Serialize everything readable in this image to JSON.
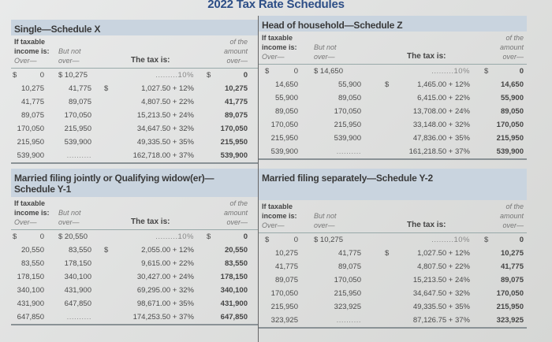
{
  "page_title": "2022 Tax Rate Schedules",
  "column_headers": {
    "if_taxable": "If taxable",
    "income_is": "income is:",
    "over": "Over—",
    "but_not": "But not",
    "but_not_over": "over—",
    "the_tax_is": "The tax is:",
    "of_the": "of the",
    "amount": "amount",
    "amount_over": "over—"
  },
  "schedules": [
    {
      "title_line1": "Single—Schedule X",
      "title_line2": "",
      "first_row": {
        "over_dollar": "$",
        "over": "0",
        "but_not_over": "$ 10,275",
        "tax": ".........10%",
        "amt_dollar": "$",
        "amount_over": "0"
      },
      "rows": [
        {
          "over": "10,275",
          "but_not_over": "41,775",
          "tax_dollar": "$",
          "tax": "1,027.50 + 12%",
          "amount_over": "10,275"
        },
        {
          "over": "41,775",
          "but_not_over": "89,075",
          "tax_dollar": "",
          "tax": "4,807.50 + 22%",
          "amount_over": "41,775"
        },
        {
          "over": "89,075",
          "but_not_over": "170,050",
          "tax_dollar": "",
          "tax": "15,213.50 + 24%",
          "amount_over": "89,075"
        },
        {
          "over": "170,050",
          "but_not_over": "215,950",
          "tax_dollar": "",
          "tax": "34,647.50 + 32%",
          "amount_over": "170,050"
        },
        {
          "over": "215,950",
          "but_not_over": "539,900",
          "tax_dollar": "",
          "tax": "49,335.50 + 35%",
          "amount_over": "215,950"
        },
        {
          "over": "539,900",
          "but_not_over": "..........",
          "tax_dollar": "",
          "tax": "162,718.00 + 37%",
          "amount_over": "539,900"
        }
      ]
    },
    {
      "title_line1": "Head of household—Schedule Z",
      "title_line2": "",
      "first_row": {
        "over_dollar": "$",
        "over": "0",
        "but_not_over": "$ 14,650",
        "tax": ".........10%",
        "amt_dollar": "$",
        "amount_over": "0"
      },
      "rows": [
        {
          "over": "14,650",
          "but_not_over": "55,900",
          "tax_dollar": "$",
          "tax": "1,465.00 + 12%",
          "amount_over": "14,650"
        },
        {
          "over": "55,900",
          "but_not_over": "89,050",
          "tax_dollar": "",
          "tax": "6,415.00 + 22%",
          "amount_over": "55,900"
        },
        {
          "over": "89,050",
          "but_not_over": "170,050",
          "tax_dollar": "",
          "tax": "13,708.00 + 24%",
          "amount_over": "89,050"
        },
        {
          "over": "170,050",
          "but_not_over": "215,950",
          "tax_dollar": "",
          "tax": "33,148.00 + 32%",
          "amount_over": "170,050"
        },
        {
          "over": "215,950",
          "but_not_over": "539,900",
          "tax_dollar": "",
          "tax": "47,836.00 + 35%",
          "amount_over": "215,950"
        },
        {
          "over": "539,900",
          "but_not_over": "..........",
          "tax_dollar": "",
          "tax": "161,218.50 + 37%",
          "amount_over": "539,900"
        }
      ]
    },
    {
      "title_line1": "Married filing jointly or Qualifying widow(er)—",
      "title_line2": "Schedule Y-1",
      "first_row": {
        "over_dollar": "$",
        "over": "0",
        "but_not_over": "$ 20,550",
        "tax": ".........10%",
        "amt_dollar": "$",
        "amount_over": "0"
      },
      "rows": [
        {
          "over": "20,550",
          "but_not_over": "83,550",
          "tax_dollar": "$",
          "tax": "2,055.00 + 12%",
          "amount_over": "20,550"
        },
        {
          "over": "83,550",
          "but_not_over": "178,150",
          "tax_dollar": "",
          "tax": "9,615.00 + 22%",
          "amount_over": "83,550"
        },
        {
          "over": "178,150",
          "but_not_over": "340,100",
          "tax_dollar": "",
          "tax": "30,427.00 + 24%",
          "amount_over": "178,150"
        },
        {
          "over": "340,100",
          "but_not_over": "431,900",
          "tax_dollar": "",
          "tax": "69,295.00 + 32%",
          "amount_over": "340,100"
        },
        {
          "over": "431,900",
          "but_not_over": "647,850",
          "tax_dollar": "",
          "tax": "98,671.00 + 35%",
          "amount_over": "431,900"
        },
        {
          "over": "647,850",
          "but_not_over": "..........",
          "tax_dollar": "",
          "tax": "174,253.50 + 37%",
          "amount_over": "647,850"
        }
      ]
    },
    {
      "title_line1": "Married filing separately—Schedule Y-2",
      "title_line2": "",
      "first_row": {
        "over_dollar": "$",
        "over": "0",
        "but_not_over": "$ 10,275",
        "tax": ".........10%",
        "amt_dollar": "$",
        "amount_over": "0"
      },
      "rows": [
        {
          "over": "10,275",
          "but_not_over": "41,775",
          "tax_dollar": "$",
          "tax": "1,027.50 + 12%",
          "amount_over": "10,275"
        },
        {
          "over": "41,775",
          "but_not_over": "89,075",
          "tax_dollar": "",
          "tax": "4,807.50 + 22%",
          "amount_over": "41,775"
        },
        {
          "over": "89,075",
          "but_not_over": "170,050",
          "tax_dollar": "",
          "tax": "15,213.50 + 24%",
          "amount_over": "89,075"
        },
        {
          "over": "170,050",
          "but_not_over": "215,950",
          "tax_dollar": "",
          "tax": "34,647.50 + 32%",
          "amount_over": "170,050"
        },
        {
          "over": "215,950",
          "but_not_over": "323,925",
          "tax_dollar": "",
          "tax": "49,335.50 + 35%",
          "amount_over": "215,950"
        },
        {
          "over": "323,925",
          "but_not_over": "..........",
          "tax_dollar": "",
          "tax": "87,126.75 + 37%",
          "amount_over": "323,925"
        }
      ]
    }
  ],
  "colors": {
    "title": "#2d4e86",
    "section_header_bg": "#c9d4df",
    "page_bg": "#e3e4e3"
  }
}
